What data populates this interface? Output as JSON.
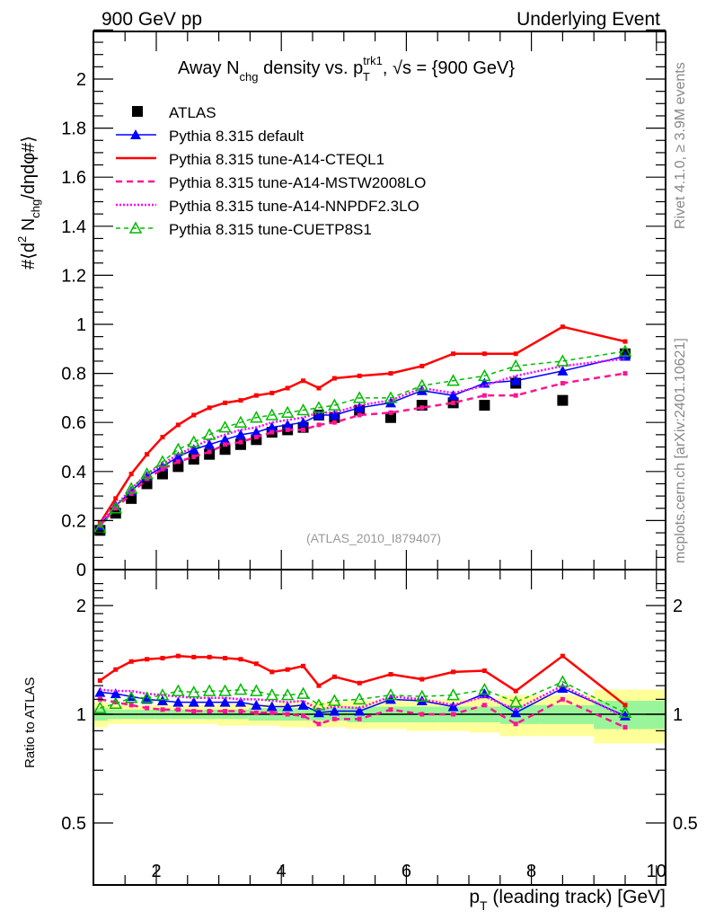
{
  "header": {
    "left": "900 GeV pp",
    "right": "Underlying Event"
  },
  "side_text": {
    "rivet": "Rivet 4.1.0, ≥ 3.9M events",
    "mcplots": "mcplots.cern.ch [arXiv:2401.10621]"
  },
  "chart_data": [
    {
      "type": "line",
      "panel": "main",
      "title": "Away N_chg density vs. p_T^trk1, √s = {900 GeV}",
      "title_parts": {
        "pre": "Away N",
        "sub1": "chg",
        "mid": " density vs. p",
        "sup": "trk1",
        "sub2": "T",
        "post": ", √s = {900 GeV}"
      },
      "ylabel": "#⟨d² N_chg/dηdφ#⟩",
      "ylabel_parts": {
        "pre": "#⟨d",
        "sup": "2",
        "mid": " N",
        "sub": "chg",
        "post": "/dηdφ#⟩"
      },
      "xlim": [
        0.99,
        10.15
      ],
      "ylim": [
        0,
        2.2
      ],
      "yticks": [
        0,
        0.2,
        0.4,
        0.6,
        0.8,
        1,
        1.2,
        1.4,
        1.6,
        1.8,
        2
      ],
      "ytick_labels": [
        "0",
        "0.2",
        "0.4",
        "0.6",
        "0.8",
        "1",
        "1.2",
        "1.4",
        "1.6",
        "1.8",
        "2"
      ],
      "watermark": "(ATLAS_2010_I879407)",
      "legend_position": "top-left",
      "x": [
        1.1,
        1.35,
        1.6,
        1.85,
        2.1,
        2.35,
        2.6,
        2.85,
        3.1,
        3.35,
        3.6,
        3.85,
        4.1,
        4.35,
        4.6,
        4.85,
        5.25,
        5.75,
        6.25,
        6.75,
        7.25,
        7.75,
        8.5,
        9.5
      ],
      "series": [
        {
          "name": "ATLAS",
          "style": "data",
          "color": "#000000",
          "values": [
            0.16,
            0.23,
            0.29,
            0.35,
            0.39,
            0.42,
            0.45,
            0.47,
            0.49,
            0.51,
            0.53,
            0.56,
            0.57,
            0.58,
            0.63,
            0.62,
            0.65,
            0.62,
            0.67,
            0.68,
            0.67,
            0.76,
            0.69,
            0.88
          ]
        },
        {
          "name": "Pythia 8.315 default",
          "style": "solid-triangle",
          "color": "#0000ff",
          "values": [
            0.18,
            0.26,
            0.32,
            0.38,
            0.42,
            0.46,
            0.49,
            0.51,
            0.53,
            0.55,
            0.56,
            0.58,
            0.59,
            0.6,
            0.63,
            0.63,
            0.66,
            0.68,
            0.73,
            0.71,
            0.76,
            0.77,
            0.81,
            0.87
          ]
        },
        {
          "name": "Pythia 8.315 tune-A14-CTEQL1",
          "style": "solid",
          "color": "#ff0000",
          "values": [
            0.19,
            0.29,
            0.39,
            0.47,
            0.54,
            0.59,
            0.63,
            0.66,
            0.68,
            0.69,
            0.71,
            0.72,
            0.74,
            0.77,
            0.74,
            0.78,
            0.79,
            0.8,
            0.83,
            0.88,
            0.88,
            0.88,
            0.99,
            0.93
          ]
        },
        {
          "name": "Pythia 8.315 tune-A14-MSTW2008LO",
          "style": "dashed",
          "color": "#ff1493",
          "values": [
            0.18,
            0.25,
            0.31,
            0.37,
            0.41,
            0.44,
            0.46,
            0.48,
            0.51,
            0.52,
            0.54,
            0.56,
            0.57,
            0.57,
            0.59,
            0.6,
            0.63,
            0.64,
            0.66,
            0.68,
            0.71,
            0.71,
            0.76,
            0.8
          ]
        },
        {
          "name": "Pythia 8.315 tune-A14-NNPDF2.3LO",
          "style": "dotted",
          "color": "#ff00ff",
          "values": [
            0.19,
            0.26,
            0.33,
            0.39,
            0.43,
            0.47,
            0.5,
            0.53,
            0.55,
            0.57,
            0.58,
            0.6,
            0.61,
            0.62,
            0.64,
            0.64,
            0.67,
            0.69,
            0.74,
            0.72,
            0.75,
            0.79,
            0.83,
            0.86
          ]
        },
        {
          "name": "Pythia 8.315 tune-CUETP8S1",
          "style": "dashed-open-triangle",
          "color": "#00bb00",
          "values": [
            0.17,
            0.25,
            0.33,
            0.39,
            0.44,
            0.49,
            0.52,
            0.55,
            0.58,
            0.6,
            0.62,
            0.63,
            0.64,
            0.65,
            0.66,
            0.67,
            0.7,
            0.7,
            0.75,
            0.77,
            0.79,
            0.83,
            0.85,
            0.89
          ]
        }
      ]
    },
    {
      "type": "line",
      "panel": "ratio",
      "ylabel": "Ratio to ATLAS",
      "yscale": "log",
      "ylim": [
        0.42,
        2.4
      ],
      "yticks": [
        0.5,
        1,
        2
      ],
      "ytick_labels": [
        "0.5",
        "1",
        "2"
      ],
      "xlabel": "p_T (leading track) [GeV]",
      "xlabel_parts": {
        "pre": "p",
        "sub": "T",
        "post": " (leading track) [GeV]"
      },
      "xticks": [
        2,
        4,
        6,
        8,
        10
      ],
      "xtick_labels": [
        "2",
        "4",
        "6",
        "8",
        "10"
      ],
      "band_inner": {
        "color": "#99f599",
        "lo": [
          0.96,
          0.97,
          0.97,
          0.97,
          0.97,
          0.97,
          0.97,
          0.97,
          0.97,
          0.97,
          0.96,
          0.96,
          0.96,
          0.96,
          0.96,
          0.96,
          0.95,
          0.95,
          0.95,
          0.95,
          0.95,
          0.94,
          0.94,
          0.91
        ],
        "hi": [
          1.04,
          1.03,
          1.03,
          1.03,
          1.03,
          1.03,
          1.03,
          1.03,
          1.03,
          1.03,
          1.04,
          1.04,
          1.04,
          1.04,
          1.04,
          1.04,
          1.05,
          1.05,
          1.05,
          1.05,
          1.05,
          1.06,
          1.06,
          1.09
        ]
      },
      "band_outer": {
        "color": "#ffff99",
        "lo": [
          0.92,
          0.94,
          0.94,
          0.94,
          0.94,
          0.94,
          0.94,
          0.94,
          0.93,
          0.93,
          0.93,
          0.93,
          0.92,
          0.92,
          0.92,
          0.92,
          0.91,
          0.91,
          0.9,
          0.9,
          0.89,
          0.87,
          0.87,
          0.83
        ],
        "hi": [
          1.08,
          1.06,
          1.06,
          1.06,
          1.06,
          1.06,
          1.06,
          1.06,
          1.07,
          1.07,
          1.07,
          1.07,
          1.08,
          1.08,
          1.08,
          1.08,
          1.09,
          1.09,
          1.1,
          1.1,
          1.11,
          1.13,
          1.13,
          1.17
        ]
      },
      "series": [
        {
          "name": "Pythia 8.315 default",
          "values": [
            1.15,
            1.14,
            1.12,
            1.1,
            1.09,
            1.08,
            1.08,
            1.08,
            1.08,
            1.08,
            1.06,
            1.05,
            1.05,
            1.06,
            1.01,
            1.02,
            1.02,
            1.1,
            1.09,
            1.05,
            1.14,
            1.01,
            1.18,
            0.99
          ]
        },
        {
          "name": "Pythia 8.315 tune-A14-CTEQL1",
          "values": [
            1.24,
            1.33,
            1.4,
            1.42,
            1.43,
            1.45,
            1.44,
            1.44,
            1.43,
            1.42,
            1.38,
            1.31,
            1.33,
            1.36,
            1.2,
            1.27,
            1.22,
            1.29,
            1.25,
            1.31,
            1.32,
            1.16,
            1.45,
            1.06
          ]
        },
        {
          "name": "Pythia 8.315 tune-A14-MSTW2008LO",
          "values": [
            1.1,
            1.08,
            1.06,
            1.04,
            1.03,
            1.03,
            1.02,
            1.02,
            1.02,
            1.02,
            1.01,
            1.01,
            1.0,
            0.99,
            0.94,
            0.97,
            0.97,
            1.03,
            1.0,
            1.0,
            1.06,
            0.94,
            1.1,
            0.92
          ]
        },
        {
          "name": "Pythia 8.315 tune-A14-NNPDF2.3LO",
          "values": [
            1.17,
            1.16,
            1.16,
            1.14,
            1.13,
            1.12,
            1.11,
            1.11,
            1.11,
            1.1,
            1.1,
            1.09,
            1.08,
            1.09,
            1.03,
            1.05,
            1.04,
            1.12,
            1.1,
            1.06,
            1.12,
            1.03,
            1.2,
            0.98
          ]
        },
        {
          "name": "Pythia 8.315 tune-CUETP8S1",
          "values": [
            1.04,
            1.07,
            1.11,
            1.11,
            1.13,
            1.16,
            1.15,
            1.16,
            1.16,
            1.17,
            1.16,
            1.13,
            1.13,
            1.14,
            1.06,
            1.09,
            1.1,
            1.13,
            1.12,
            1.13,
            1.17,
            1.08,
            1.23,
            1.01
          ]
        }
      ]
    }
  ]
}
